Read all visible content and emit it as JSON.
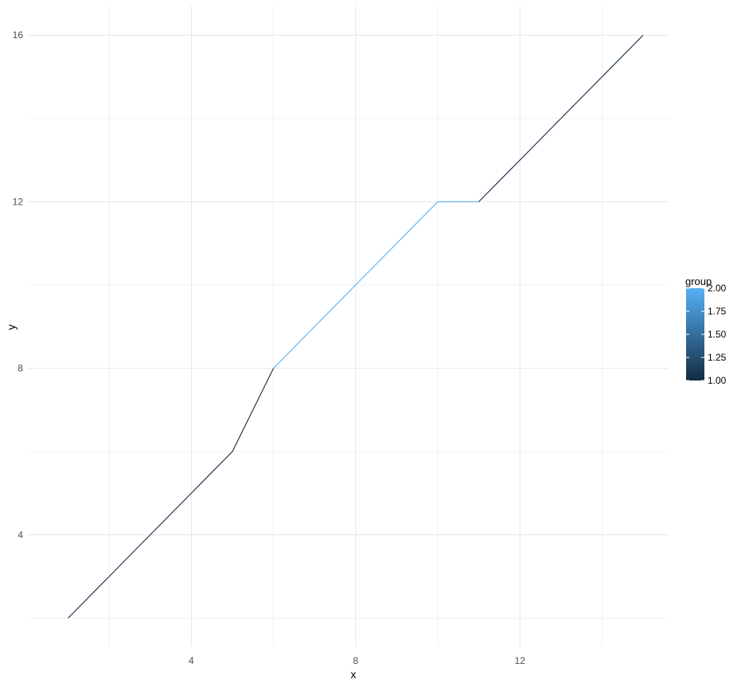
{
  "chart_data": {
    "type": "line",
    "title": "",
    "xlabel": "x",
    "ylabel": "y",
    "x": [
      1,
      2,
      3,
      4,
      5,
      6,
      7,
      8,
      9,
      10,
      11,
      12,
      13,
      14,
      15
    ],
    "y": [
      2,
      3,
      4,
      5,
      6,
      8,
      9,
      10,
      11,
      12,
      12,
      13,
      14,
      15,
      16
    ],
    "group": [
      1,
      1,
      1,
      1,
      1,
      2,
      2,
      2,
      2,
      2,
      1,
      1,
      1,
      1,
      1
    ],
    "xlim": [
      0.3,
      15.7
    ],
    "ylim": [
      1.3,
      16.7
    ],
    "x_ticks": [
      4,
      8,
      12
    ],
    "y_ticks": [
      4,
      8,
      12,
      16
    ],
    "x_tick_labels": [
      "4",
      "8",
      "12"
    ],
    "y_tick_labels": [
      "4",
      "8",
      "12",
      "16"
    ],
    "grid": true,
    "legend": {
      "title": "group",
      "position": "right",
      "type": "colorbar",
      "range": [
        1.0,
        2.0
      ],
      "labels": [
        "1.00",
        "1.25",
        "1.50",
        "1.75",
        "2.00"
      ],
      "low_color": "#132B43",
      "high_color": "#56B1F7"
    }
  }
}
